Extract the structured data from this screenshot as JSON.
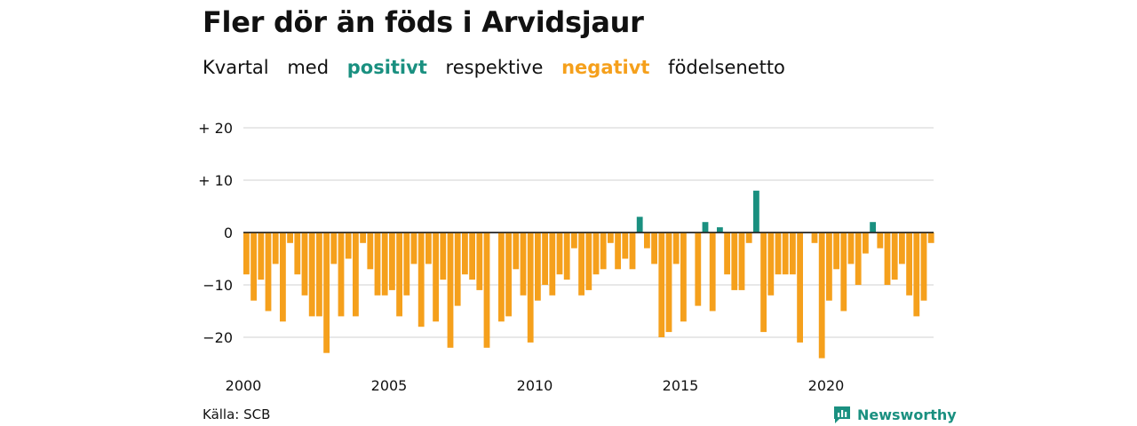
{
  "title": "Fler dör än föds i Arvidsjaur",
  "subtitle": {
    "w1": "Kvartal",
    "w2": "med",
    "positive": "positivt",
    "w3": "respektive",
    "negative": "negativt",
    "w4": "födelsenetto"
  },
  "source": "Källa: SCB",
  "brand": {
    "name": "Newsworthy",
    "icon": "newsworthy-logo-icon"
  },
  "colors": {
    "positive": "#1a9080",
    "negative": "#f5a01c",
    "grid": "#d9d9d9",
    "brand": "#1a9080"
  },
  "chart_data": {
    "type": "bar",
    "title": "Fler dör än föds i Arvidsjaur",
    "xlabel": "",
    "ylabel": "",
    "ylim": [
      -25,
      20
    ],
    "y_ticks": [
      {
        "value": 20,
        "label": "+ 20"
      },
      {
        "value": 10,
        "label": "+ 10"
      },
      {
        "value": 0,
        "label": "0"
      },
      {
        "value": -10,
        "label": "−10"
      },
      {
        "value": -20,
        "label": "−20"
      }
    ],
    "x_ticks": [
      "2000",
      "2005",
      "2010",
      "2015",
      "2020"
    ],
    "start_year": 2000,
    "grid": true,
    "values": [
      -8,
      -13,
      -9,
      -15,
      -6,
      -17,
      -2,
      -8,
      -12,
      -16,
      -16,
      -23,
      -6,
      -16,
      -5,
      -16,
      -2,
      -7,
      -12,
      -12,
      -11,
      -16,
      -12,
      -6,
      -18,
      -6,
      -17,
      -9,
      -22,
      -14,
      -8,
      -9,
      -11,
      -22,
      0,
      -17,
      -16,
      -7,
      -12,
      -21,
      -13,
      -10,
      -12,
      -8,
      -9,
      -3,
      -12,
      -11,
      -8,
      -7,
      -2,
      -7,
      -5,
      -7,
      3,
      -3,
      -6,
      -20,
      -19,
      -6,
      -17,
      0,
      -14,
      2,
      -15,
      1,
      -8,
      -11,
      -11,
      -2,
      8,
      -19,
      -12,
      -8,
      -8,
      -8,
      -21,
      0,
      -2,
      -24,
      -13,
      -7,
      -15,
      -6,
      -10,
      -4,
      2,
      -3,
      -10,
      -9,
      -6,
      -12,
      -16,
      -13,
      -2
    ]
  }
}
